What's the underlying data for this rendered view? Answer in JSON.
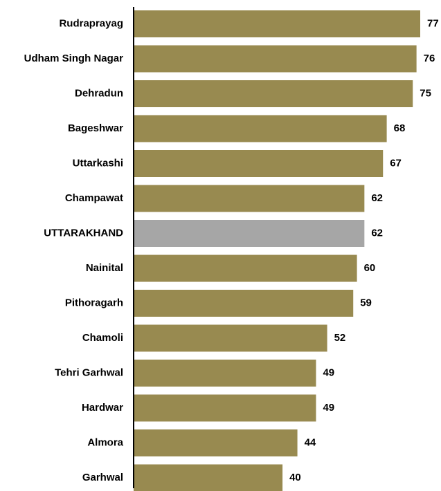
{
  "chart_data": {
    "type": "bar",
    "orientation": "horizontal",
    "title": "",
    "xlabel": "",
    "ylabel": "",
    "categories": [
      "Rudraprayag",
      "Udham Singh Nagar",
      "Dehradun",
      "Bageshwar",
      "Uttarkashi",
      "Champawat",
      "UTTARAKHAND",
      "Nainital",
      "Pithoragarh",
      "Chamoli",
      "Tehri Garhwal",
      "Hardwar",
      "Almora",
      "Garhwal"
    ],
    "values": [
      77,
      76,
      75,
      68,
      67,
      62,
      62,
      60,
      59,
      52,
      49,
      49,
      44,
      40
    ],
    "value_labels": [
      "77",
      "76",
      "75",
      "68",
      "67",
      "62",
      "62",
      "60",
      "59",
      "52",
      "49",
      "49",
      "44",
      "40"
    ],
    "xlim": [
      0,
      77
    ],
    "grid": false,
    "legend": "none",
    "highlight_category": "UTTARAKHAND",
    "colors": {
      "bar": "#988A50",
      "highlight": "#A6A6A6",
      "axis": "#000000",
      "text": "#000000"
    }
  }
}
